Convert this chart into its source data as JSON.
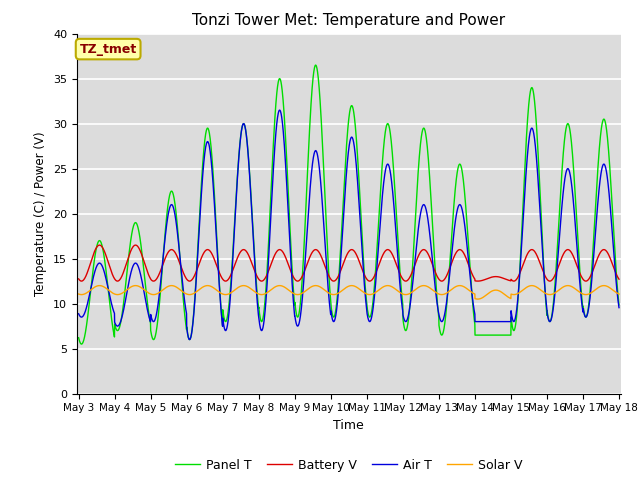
{
  "title": "Tonzi Tower Met: Temperature and Power",
  "xlabel": "Time",
  "ylabel": "Temperature (C) / Power (V)",
  "annotation": "TZ_tmet",
  "ylim": [
    0,
    40
  ],
  "x_tick_labels": [
    "May 3",
    "May 4",
    "May 5",
    "May 6",
    "May 7",
    "May 8",
    "May 9",
    "May 10",
    "May 11",
    "May 12",
    "May 13",
    "May 14",
    "May 15",
    "May 16",
    "May 17",
    "May 18"
  ],
  "x_tick_positions": [
    3,
    4,
    5,
    6,
    7,
    8,
    9,
    10,
    11,
    12,
    13,
    14,
    15,
    16,
    17,
    18
  ],
  "colors": {
    "panel_t": "#00DD00",
    "battery_v": "#DD0000",
    "air_t": "#0000DD",
    "solar_v": "#FFA500"
  },
  "legend_labels": [
    "Panel T",
    "Battery V",
    "Air T",
    "Solar V"
  ],
  "bg_color": "#DCDCDC",
  "annotation_bg": "#FFFFAA",
  "annotation_fg": "#880000",
  "annotation_border": "#BBAA00"
}
